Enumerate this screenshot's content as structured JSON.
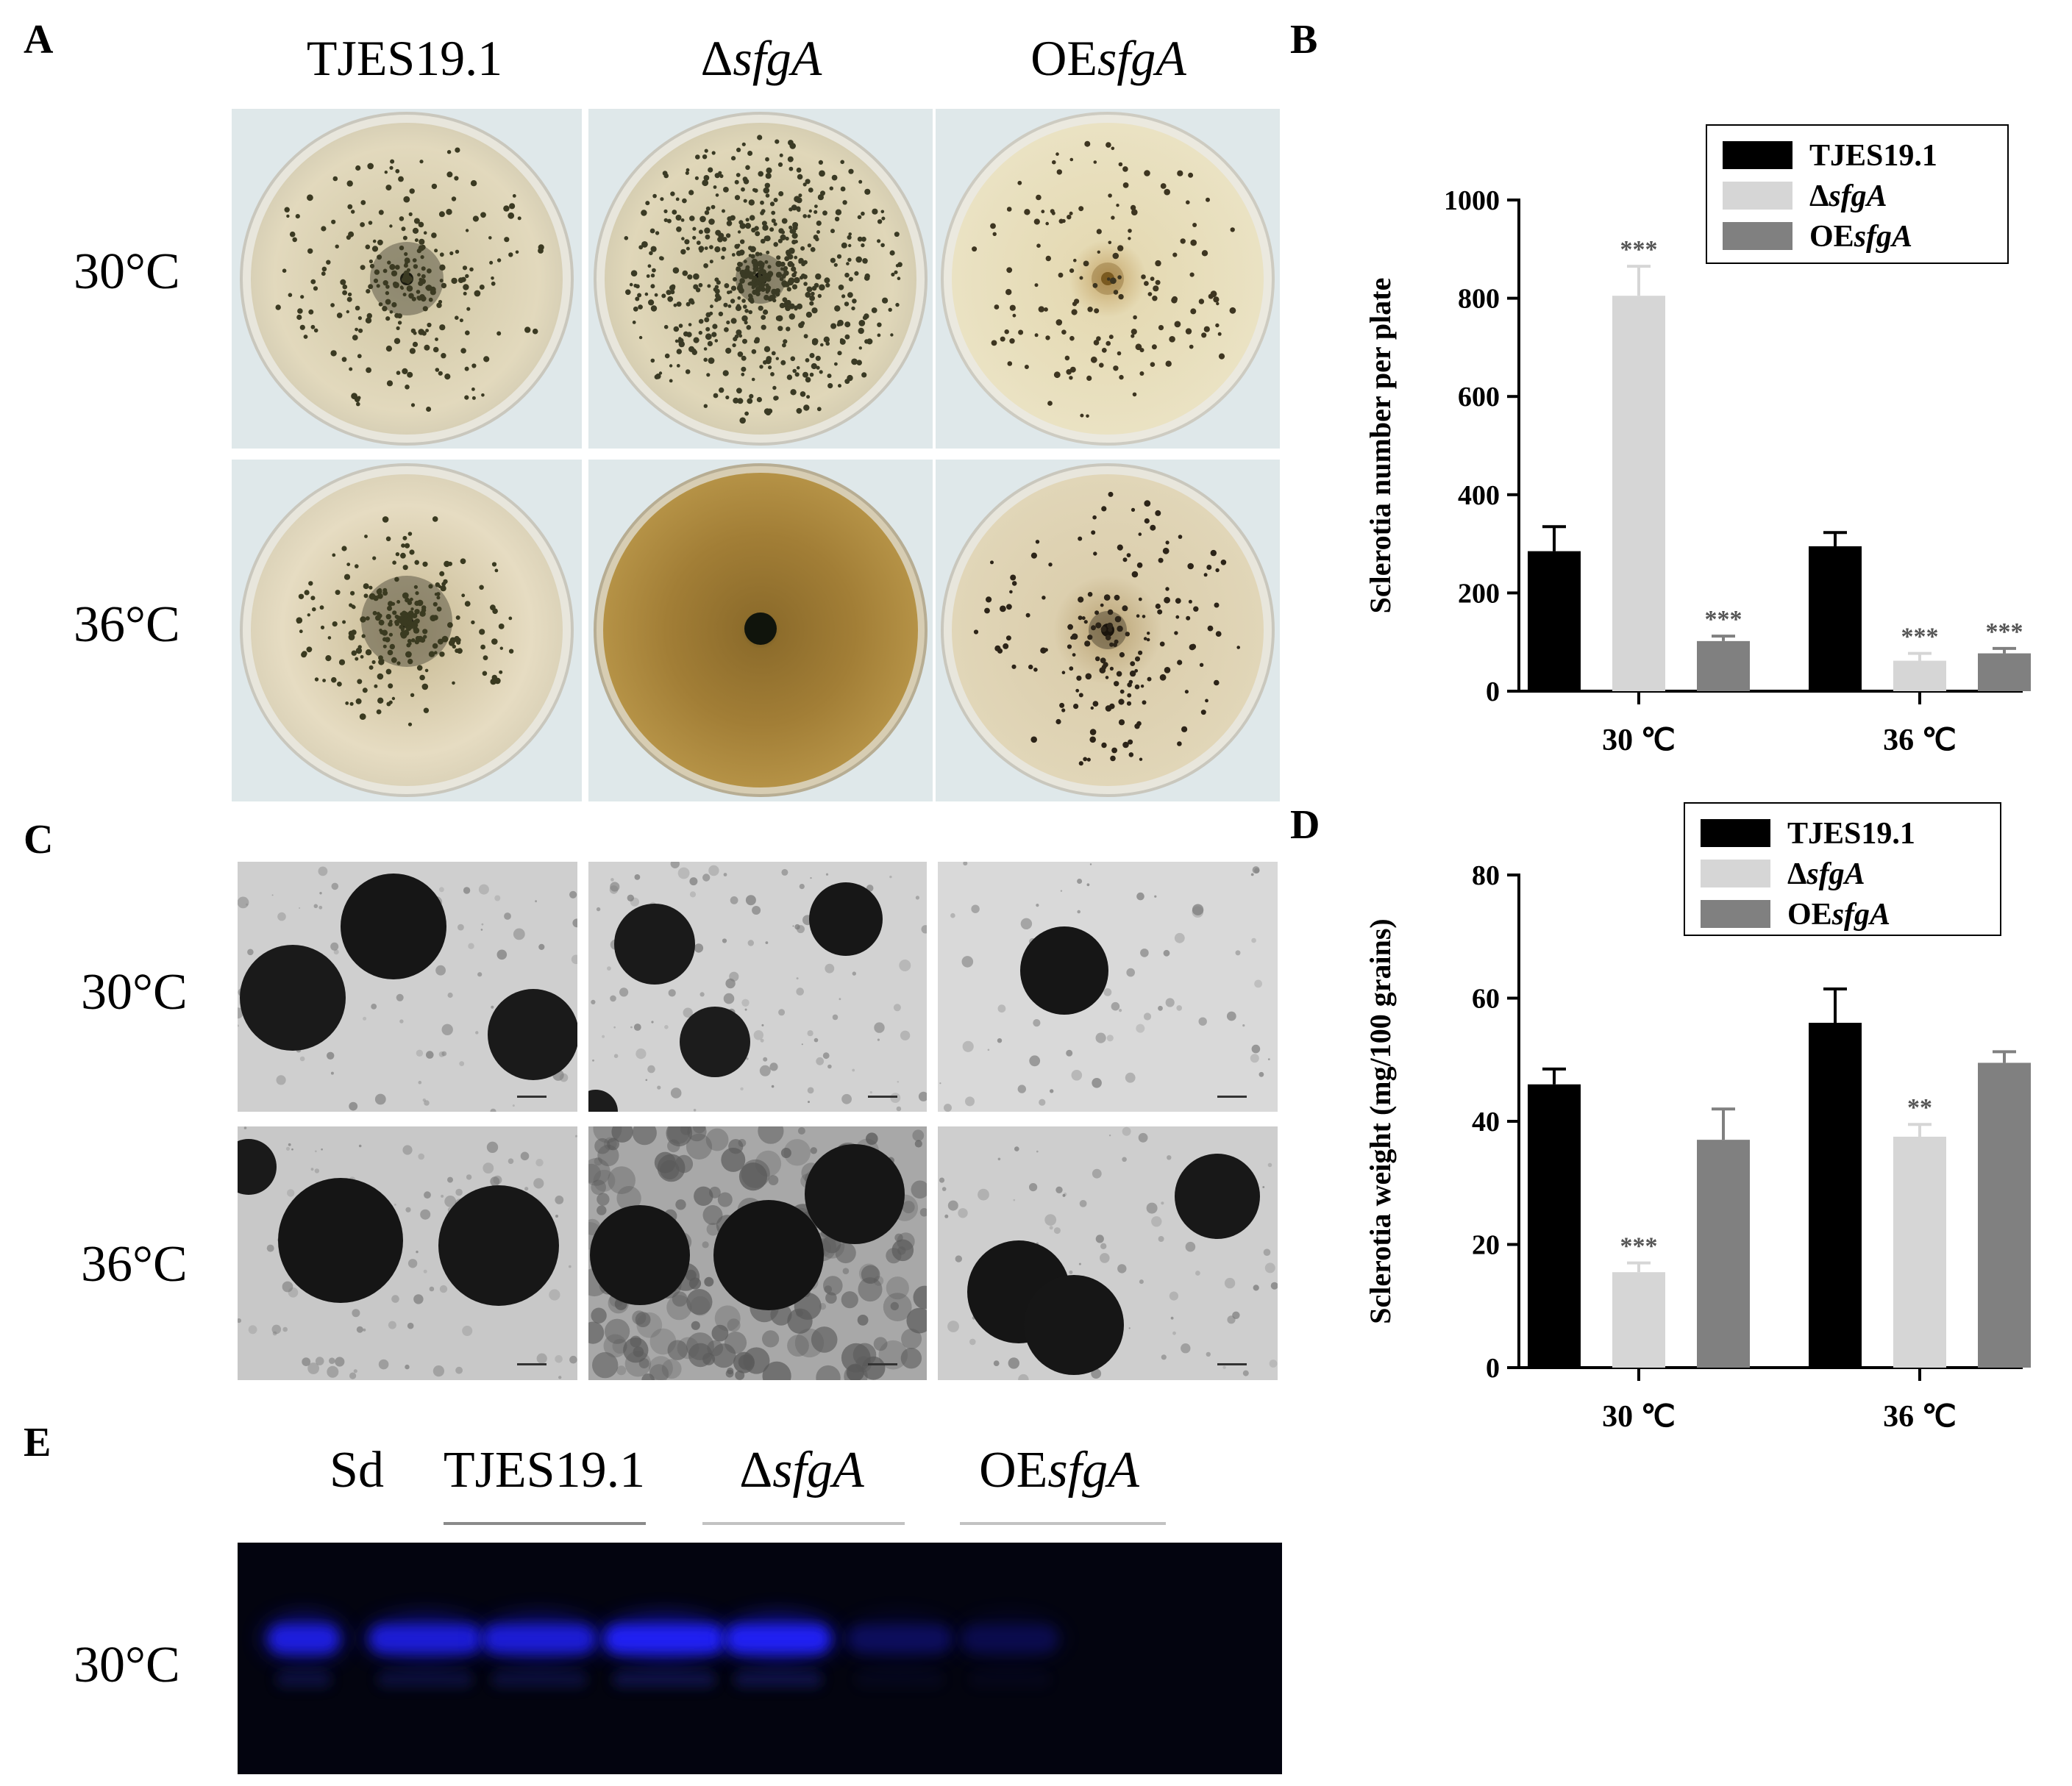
{
  "figure": {
    "panel_letters": {
      "a": "A",
      "b": "B",
      "c": "C",
      "d": "D",
      "e": "E"
    },
    "strains": [
      {
        "prefix": "TJES19.1",
        "italic": ""
      },
      {
        "prefix": "Δ",
        "italic": "sfgA"
      },
      {
        "prefix": "OE",
        "italic": "sfgA"
      }
    ],
    "temperatures": [
      "30°C",
      "36°C"
    ],
    "gel": {
      "lanes": [
        {
          "prefix": "Sd",
          "italic": ""
        },
        {
          "prefix": "TJES19.1",
          "italic": ""
        },
        {
          "prefix": "Δ",
          "italic": "sfgA"
        },
        {
          "prefix": "OE",
          "italic": "sfgA"
        }
      ],
      "row_label": "30°C",
      "band_intensity": [
        0.85,
        0.8,
        0.8,
        1.0,
        1.0,
        0.25,
        0.2
      ]
    },
    "colors": {
      "tjes": "#000000",
      "dsfga": "#d6d6d6",
      "oesfga": "#808080",
      "gel_band": "#2222ff"
    }
  },
  "chart_data": [
    {
      "type": "bar",
      "panel": "B",
      "ylabel": "Sclerotia number per plate",
      "categories": [
        "30 ℃",
        "36 ℃"
      ],
      "ylim": [
        0,
        1000
      ],
      "yticks": [
        "0",
        "200",
        "400",
        "600",
        "800",
        "1000"
      ],
      "ytick_values": [
        0,
        200,
        400,
        600,
        800,
        1000
      ],
      "legend": {
        "position": "top-right",
        "entries": [
          {
            "prefix": "TJES19.1",
            "italic": ""
          },
          {
            "prefix": "Δ",
            "italic": "sfgA"
          },
          {
            "prefix": "OE",
            "italic": "sfgA"
          }
        ]
      },
      "series": [
        {
          "values": [
            285,
            295
          ],
          "errors": [
            50,
            28
          ],
          "significance": [
            "",
            ""
          ]
        },
        {
          "values": [
            805,
            62
          ],
          "errors": [
            60,
            15
          ],
          "significance": [
            "***",
            "***"
          ]
        },
        {
          "values": [
            102,
            77
          ],
          "errors": [
            10,
            10
          ],
          "significance": [
            "***",
            "***"
          ]
        }
      ]
    },
    {
      "type": "bar",
      "panel": "D",
      "ylabel": "Sclerotia weight (mg/100 grains)",
      "categories": [
        "30 ℃",
        "36 ℃"
      ],
      "ylim": [
        0,
        80
      ],
      "yticks": [
        "0",
        "20",
        "40",
        "60",
        "80"
      ],
      "ytick_values": [
        0,
        20,
        40,
        60,
        80
      ],
      "legend": {
        "position": "top-right",
        "entries": [
          {
            "prefix": "TJES19.1",
            "italic": ""
          },
          {
            "prefix": "Δ",
            "italic": "sfgA"
          },
          {
            "prefix": "OE",
            "italic": "sfgA"
          }
        ]
      },
      "series": [
        {
          "values": [
            46,
            56
          ],
          "errors": [
            2.5,
            5.5
          ],
          "significance": [
            "",
            ""
          ]
        },
        {
          "values": [
            15.5,
            37.5
          ],
          "errors": [
            1.5,
            2
          ],
          "significance": [
            "***",
            "**"
          ]
        },
        {
          "values": [
            37,
            49.5
          ],
          "errors": [
            5,
            1.8
          ],
          "significance": [
            "",
            ""
          ]
        }
      ]
    }
  ]
}
